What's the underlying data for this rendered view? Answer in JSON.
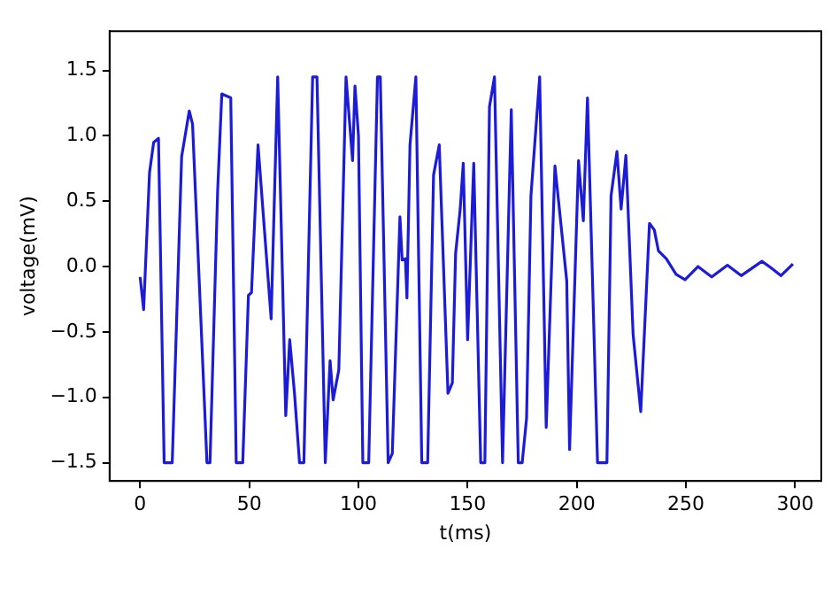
{
  "chart_data": {
    "type": "line",
    "xlabel": "t(ms)",
    "ylabel": "voltage(mV)",
    "x": [
      0,
      1.6,
      4.3,
      6.2,
      8.4,
      11,
      14.7,
      19,
      22.5,
      24,
      30.6,
      32,
      35.5,
      37.4,
      41.5,
      44,
      47,
      49.6,
      51,
      54,
      60,
      63,
      66.7,
      68.5,
      70.7,
      73,
      75,
      79,
      81,
      84.8,
      87,
      88.4,
      91,
      94.3,
      97.3,
      98.4,
      100,
      102,
      104.7,
      108.7,
      110,
      113.6,
      115.5,
      119,
      120,
      121.5,
      122.2,
      123.6,
      126.3,
      129,
      131.7,
      134.4,
      137,
      141,
      143,
      144.5,
      146.6,
      148,
      150,
      152.8,
      156,
      157.9,
      160,
      162.3,
      166,
      170,
      173.2,
      175,
      177,
      179,
      183,
      186,
      190,
      195.4,
      196.7,
      200.8,
      203,
      204.9,
      209.5,
      213.8,
      215.7,
      218.4,
      220.3,
      222.5,
      225.8,
      229.3,
      233.3,
      235.5,
      237.4,
      241,
      245.5,
      249.6,
      255.5,
      261.8,
      269,
      275.3,
      284.8,
      289,
      293.5,
      299
    ],
    "series": [
      {
        "color": "#1c1cd8",
        "values": [
          -0.08,
          -0.33,
          0.72,
          0.95,
          0.98,
          -1.5,
          -1.5,
          0.84,
          1.19,
          1.09,
          -1.5,
          -1.5,
          0.58,
          1.32,
          1.29,
          -1.5,
          -1.5,
          -0.22,
          -0.2,
          0.93,
          -0.4,
          1.45,
          -1.14,
          -0.56,
          -0.97,
          -1.5,
          -1.5,
          1.45,
          1.45,
          -1.5,
          -0.72,
          -1.02,
          -0.79,
          1.45,
          0.81,
          1.38,
          1.0,
          -1.5,
          -1.5,
          1.45,
          1.45,
          -1.5,
          -1.43,
          0.38,
          0.05,
          0.06,
          -0.24,
          0.93,
          1.45,
          -1.5,
          -1.5,
          0.7,
          0.93,
          -0.97,
          -0.89,
          0.1,
          0.44,
          0.79,
          -0.56,
          0.79,
          -1.5,
          -1.5,
          1.22,
          1.45,
          -1.5,
          1.2,
          -1.5,
          -1.5,
          -1.16,
          0.54,
          1.45,
          -1.23,
          0.77,
          -0.11,
          -1.4,
          0.81,
          0.35,
          1.29,
          -1.5,
          -1.5,
          0.54,
          0.88,
          0.44,
          0.85,
          -0.52,
          -1.11,
          0.33,
          0.28,
          0.12,
          0.06,
          -0.06,
          -0.1,
          0.0,
          -0.08,
          0.01,
          -0.07,
          0.04,
          -0.01,
          -0.07,
          0.02
        ]
      }
    ],
    "xlim": [
      -14,
      312
    ],
    "xticks": [
      0,
      50,
      100,
      150,
      200,
      250,
      300
    ],
    "ylim": [
      -1.64,
      1.8
    ],
    "yticks": [
      {
        "value": -1.5,
        "label": "−1.5"
      },
      {
        "value": -1.0,
        "label": "−1.0"
      },
      {
        "value": -0.5,
        "label": "−0.5"
      },
      {
        "value": 0,
        "label": "0.0"
      },
      {
        "value": 0.5,
        "label": "0.5"
      },
      {
        "value": 1.0,
        "label": "1.0"
      },
      {
        "value": 1.5,
        "label": "1.5"
      }
    ],
    "grid": false,
    "legend": false,
    "marker": "none",
    "line_style": "solid"
  }
}
